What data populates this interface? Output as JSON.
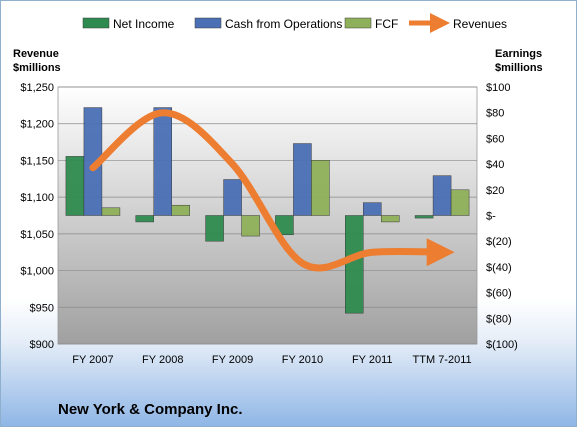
{
  "chart_data": {
    "type": "bar",
    "company": "New York & Company Inc.",
    "left_axis": {
      "title_line1": "Revenue",
      "title_line2": "$millions",
      "min": 900,
      "max": 1250,
      "step": 50,
      "tick_labels": [
        "$900",
        "$950",
        "$1,000",
        "$1,050",
        "$1,100",
        "$1,150",
        "$1,200",
        "$1,250"
      ]
    },
    "right_axis": {
      "title_line1": "Earnings",
      "title_line2": "$millions",
      "min": -100,
      "max": 100,
      "step": 20,
      "tick_labels": [
        "$(100)",
        "$(80)",
        "$(60)",
        "$(40)",
        "$(20)",
        "$-",
        "$20",
        "$40",
        "$60",
        "$80",
        "$100"
      ]
    },
    "categories": [
      "FY 2007",
      "FY 2008",
      "FY 2009",
      "FY 2010",
      "FY 2011",
      "TTM 7-2011"
    ],
    "series": [
      {
        "name": "Net Income",
        "axis": "right",
        "kind": "bar",
        "color": "#2e8b4f",
        "values": [
          46,
          -5,
          -20,
          -15,
          -76,
          -2
        ]
      },
      {
        "name": "Cash from Operations",
        "axis": "right",
        "kind": "bar",
        "color": "#4a6fb5",
        "values": [
          84,
          84,
          28,
          56,
          10,
          31
        ]
      },
      {
        "name": "FCF",
        "axis": "right",
        "kind": "bar",
        "color": "#8fb05a",
        "values": [
          6,
          8,
          -16,
          43,
          -5,
          20
        ]
      },
      {
        "name": "Revenues",
        "axis": "left",
        "kind": "line",
        "color": "#ed7d31",
        "values": [
          1140,
          1215,
          1145,
          1010,
          1025,
          1025
        ]
      }
    ],
    "grid": true,
    "legend": "top"
  }
}
